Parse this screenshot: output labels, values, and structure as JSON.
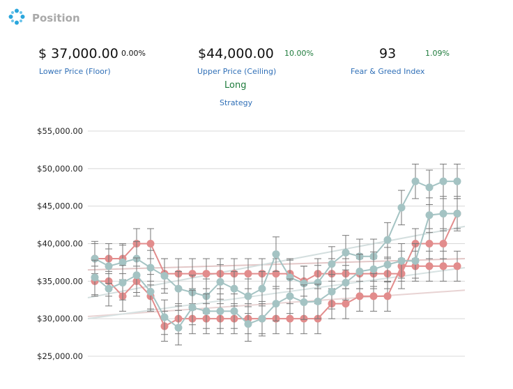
{
  "header": {
    "title": "Position",
    "icon": "position-icon",
    "icon_color": "#2aa6dc"
  },
  "stats": {
    "lower": {
      "value": "$ 37,000.00",
      "pct": "0.00%",
      "label": "Lower Price (Floor)"
    },
    "upper": {
      "value": "$44,000.00",
      "pct": "10.00%",
      "label": "Upper Price (Ceiling)"
    },
    "fear": {
      "value": "93",
      "pct": "1.09%",
      "label": "Fear & Greed Index"
    },
    "strategy": {
      "value": "Long",
      "label": "Strategy"
    }
  },
  "colors": {
    "link_blue": "#2f6fb7",
    "positive_green": "#1e7b3c",
    "series_red": "#e28c8c",
    "series_teal": "#a4c3c3",
    "error_bar": "#777777",
    "grid": "#d8d8d8"
  },
  "chart_data": {
    "type": "line",
    "ylim": [
      25000,
      55000
    ],
    "yticks": [
      "$25,000.00",
      "$30,000.00",
      "$35,000.00",
      "$40,000.00",
      "$45,000.00",
      "$50,000.00",
      "$55,000.00"
    ],
    "ytick_values": [
      25000,
      30000,
      35000,
      40000,
      45000,
      50000,
      55000
    ],
    "x_count": 27,
    "grid": true,
    "series": [
      {
        "color": "#e28c8c",
        "values": [
          38000,
          38000,
          38000,
          40000,
          40000,
          36000,
          36000,
          36000,
          36000,
          36000,
          36000,
          36000,
          36000,
          36000,
          36000,
          35000,
          36000,
          36000,
          36000,
          36000,
          36000,
          36000,
          36000,
          40000,
          40000,
          40000,
          44000
        ],
        "error": 2000
      },
      {
        "color": "#e28c8c",
        "values": [
          35000,
          35000,
          33000,
          35000,
          33000,
          29000,
          30000,
          30000,
          30000,
          30000,
          30000,
          30000,
          30000,
          30000,
          30000,
          30000,
          30000,
          32000,
          32000,
          33000,
          33000,
          33000,
          37000,
          37000,
          37000,
          37000,
          37000
        ],
        "error": 2000
      },
      {
        "color": "#a4c3c3",
        "values": [
          38000,
          37000,
          37500,
          38000,
          36800,
          35700,
          34000,
          33500,
          33000,
          34900,
          34000,
          33000,
          34000,
          38600,
          35500,
          34700,
          34800,
          37300,
          38800,
          38300,
          38300,
          40500,
          44800,
          48300,
          47500,
          48300,
          48300
        ],
        "error": 2300
      },
      {
        "color": "#a4c3c3",
        "values": [
          35500,
          34000,
          34800,
          35800,
          33600,
          30200,
          28800,
          31500,
          31000,
          31000,
          31000,
          29300,
          30000,
          32000,
          33000,
          32200,
          32300,
          33600,
          34800,
          36300,
          36600,
          37200,
          37700,
          37700,
          43800,
          44000,
          44000
        ],
        "error": 2300
      }
    ],
    "trendlines": [
      {
        "color": "#e3c7c7",
        "from": [
          0,
          36500
        ],
        "to": [
          26,
          38000
        ]
      },
      {
        "color": "#e8d3d3",
        "from": [
          0,
          30300
        ],
        "to": [
          26,
          33800
        ]
      },
      {
        "color": "#d3dede",
        "from": [
          0,
          32800
        ],
        "to": [
          26,
          42300
        ]
      },
      {
        "color": "#d7e2e2",
        "from": [
          0,
          30000
        ],
        "to": [
          26,
          36800
        ]
      }
    ]
  }
}
